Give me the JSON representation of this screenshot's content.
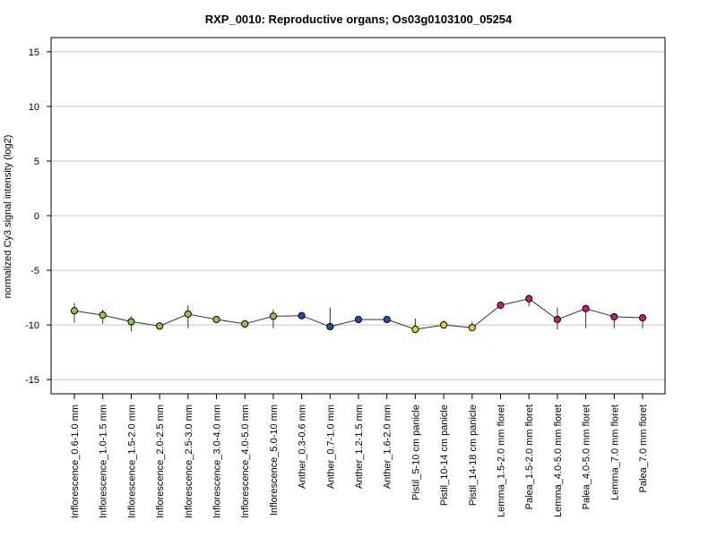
{
  "chart_data": {
    "type": "line",
    "title": "RXP_0010: Reproductive organs; Os03g0103100_05254",
    "xlabel": "",
    "ylabel": "normalized Cy3 signal intensity (log2)",
    "ylim": [
      -16.3,
      16.3
    ],
    "yticks": [
      -15,
      -10,
      -5,
      0,
      5,
      10,
      15
    ],
    "grid": true,
    "categories": [
      "Inflorescence_0.6-1.0 mm",
      "Inflorescence_1.0-1.5 mm",
      "Inflorescence_1.5-2.0 mm",
      "Inflorescence_2.0-2.5 mm",
      "Inflorescence_2.5-3.0 mm",
      "Inflorescence_3.0-4.0 mm",
      "Inflorescence_4.0-5.0 mm",
      "Inflorescence_5.0-10 mm",
      "Anther_0.3-0.6 mm",
      "Anther_0.7-1.0 mm",
      "Anther_1.2-1.5 mm",
      "Anther_1.6-2.0 mm",
      "Pistil_5-10 cm panicle",
      "Pistil_10-14 cm panicle",
      "Pistil_14-18 cm panicle",
      "Lemma_1.5-2.0 mm floret",
      "Palea_1.5-2.0 mm floret",
      "Lemma_4.0-5.0 mm floret",
      "Palea_4.0-5.0 mm floret",
      "Lemma_7.0 mm floret",
      "Palea_7.0 mm floret"
    ],
    "values": [
      -8.7,
      -9.1,
      -9.7,
      -10.1,
      -9.0,
      -9.5,
      -9.9,
      -9.2,
      -9.15,
      -10.15,
      -9.5,
      -9.5,
      -10.4,
      -10.0,
      -10.25,
      -8.2,
      -7.6,
      -9.5,
      -8.5,
      -9.25,
      -9.35
    ],
    "error_low": [
      -9.8,
      -9.9,
      -10.6,
      -10.4,
      -10.3,
      -9.7,
      -10.3,
      -10.3,
      -9.3,
      -10.3,
      -9.6,
      -9.6,
      -10.6,
      -10.2,
      -10.5,
      -8.3,
      -8.3,
      -10.4,
      -10.3,
      -10.3,
      -10.3
    ],
    "error_high": [
      -8.0,
      -8.6,
      -9.2,
      -9.9,
      -8.2,
      -9.3,
      -9.6,
      -8.6,
      -9.0,
      -8.4,
      -9.4,
      -9.4,
      -9.4,
      -9.6,
      -9.7,
      -8.1,
      -7.2,
      -8.4,
      -8.3,
      -9.1,
      -9.2
    ],
    "point_colors": [
      "#8ccc3c",
      "#8ccc3c",
      "#8ccc3c",
      "#8ccc3c",
      "#8ccc3c",
      "#8ccc3c",
      "#8ccc3c",
      "#8ccc3c",
      "#1f4fb4",
      "#1f4fb4",
      "#1f4fb4",
      "#1f4fb4",
      "#f0c832",
      "#f0c832",
      "#f0c832",
      "#d4147a",
      "#d4147a",
      "#d4147a",
      "#d4147a",
      "#d4147a",
      "#d4147a"
    ],
    "line_color": "#333333",
    "grid_color": "#c8c8c8"
  }
}
